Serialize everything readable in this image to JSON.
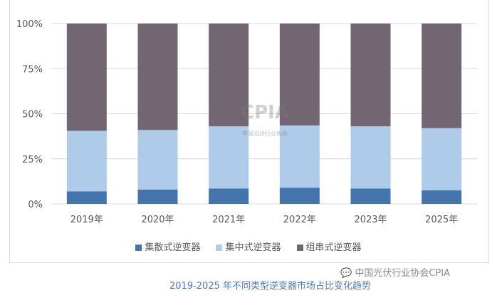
{
  "chart_data": {
    "type": "bar",
    "stacked": true,
    "categories": [
      "2019年",
      "2020年",
      "2021年",
      "2022年",
      "2023年",
      "2025年"
    ],
    "series": [
      {
        "name": "集散式逆变器",
        "color": "#4474ab",
        "values": [
          7,
          8,
          8.5,
          9,
          8.5,
          7.5
        ]
      },
      {
        "name": "集中式逆变器",
        "color": "#aecbe9",
        "values": [
          33.5,
          33,
          34.5,
          34.5,
          34.5,
          34.5
        ]
      },
      {
        "name": "组串式逆变器",
        "color": "#736673",
        "values": [
          59.5,
          59,
          57,
          56.5,
          57,
          58
        ]
      }
    ],
    "ylim": [
      0,
      100
    ],
    "yticks": [
      "0%",
      "25%",
      "50%",
      "75%",
      "100%"
    ],
    "grid": true,
    "legend": "bottom",
    "title": "2019-2025 年不同类型逆变器市场占比变化趋势"
  },
  "watermark": {
    "logo": "CPIA",
    "name": "中国光伏行业协会"
  },
  "source": "中国光伏行业协会CPIA"
}
